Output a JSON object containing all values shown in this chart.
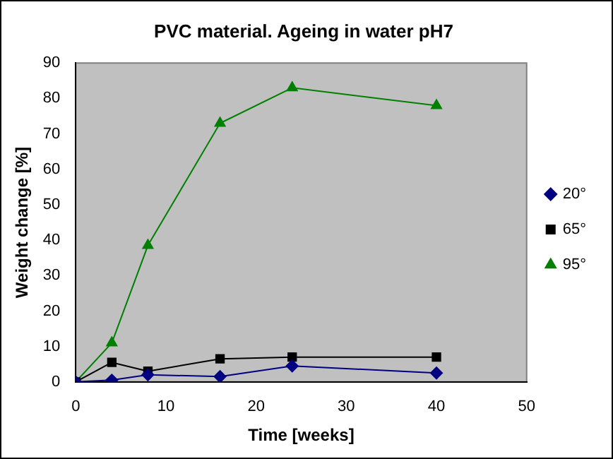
{
  "chart_data": {
    "type": "line",
    "title": "PVC material. Ageing in water pH7",
    "xlabel": "Time [weeks]",
    "ylabel": "Weight change [%]",
    "x": [
      0,
      4,
      8,
      16,
      24,
      40
    ],
    "series": [
      {
        "name": "20°",
        "color": "#000080",
        "marker": "diamond",
        "values": [
          0,
          0.5,
          2,
          1.5,
          4.5,
          2.5
        ]
      },
      {
        "name": "65°",
        "color": "#000000",
        "marker": "square",
        "values": [
          0,
          5.5,
          3,
          6.5,
          7,
          7
        ]
      },
      {
        "name": "95°",
        "color": "#008000",
        "marker": "triangle",
        "values": [
          0,
          11,
          38.5,
          73,
          83,
          78
        ]
      }
    ],
    "xlim": [
      0,
      50
    ],
    "xticks": [
      0,
      10,
      20,
      30,
      40,
      50
    ],
    "ylim": [
      0,
      90
    ],
    "yticks": [
      0,
      10,
      20,
      30,
      40,
      50,
      60,
      70,
      80,
      90
    ],
    "grid": false,
    "legend": "right"
  }
}
